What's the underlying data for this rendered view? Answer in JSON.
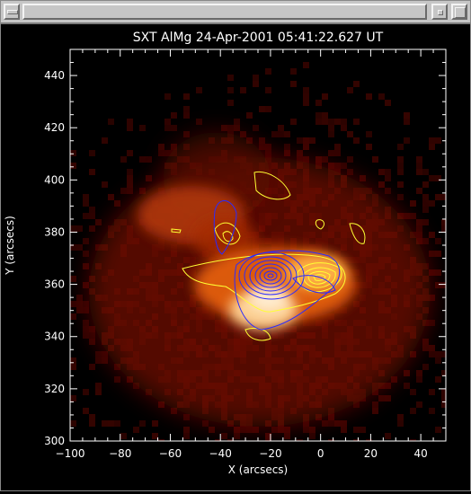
{
  "window": {
    "title": ""
  },
  "plot": {
    "title": "SXT AlMg 24-Apr-2001 05:41:22.627 UT",
    "xlabel": "X (arcsecs)",
    "ylabel": "Y (arcsecs)",
    "xlim": [
      -100,
      50
    ],
    "ylim": [
      300,
      450
    ],
    "xticks": [
      "−100",
      "−80",
      "−60",
      "−40",
      "−20",
      "0",
      "20",
      "40"
    ],
    "xtick_values": [
      -100,
      -80,
      -60,
      -40,
      -20,
      0,
      20,
      40
    ],
    "yticks": [
      "300",
      "320",
      "340",
      "360",
      "380",
      "400",
      "420",
      "440"
    ],
    "ytick_values": [
      300,
      320,
      340,
      360,
      380,
      400,
      420,
      440
    ],
    "image_colormap": "red-temperature",
    "contour_colors": {
      "blue": "#2a2aff",
      "yellow": "#ffff33"
    },
    "background": "#000000",
    "axis_color": "#ffffff"
  },
  "chart_data": {
    "type": "heatmap",
    "title": "SXT AlMg 24-Apr-2001 05:41:22.627 UT",
    "xlabel": "X (arcsecs)",
    "ylabel": "Y (arcsecs)",
    "xlim": [
      -100,
      50
    ],
    "ylim": [
      300,
      450
    ],
    "grid": false,
    "features": [
      {
        "name": "brightest core",
        "x": -25,
        "y": 352
      },
      {
        "name": "bright loop",
        "x": -5,
        "y": 362
      },
      {
        "name": "western blob",
        "x": -52,
        "y": 386
      }
    ],
    "contours": {
      "blue_peak": {
        "x": -19,
        "y": 364
      },
      "yellow_peak": {
        "x": -1,
        "y": 365
      }
    }
  }
}
